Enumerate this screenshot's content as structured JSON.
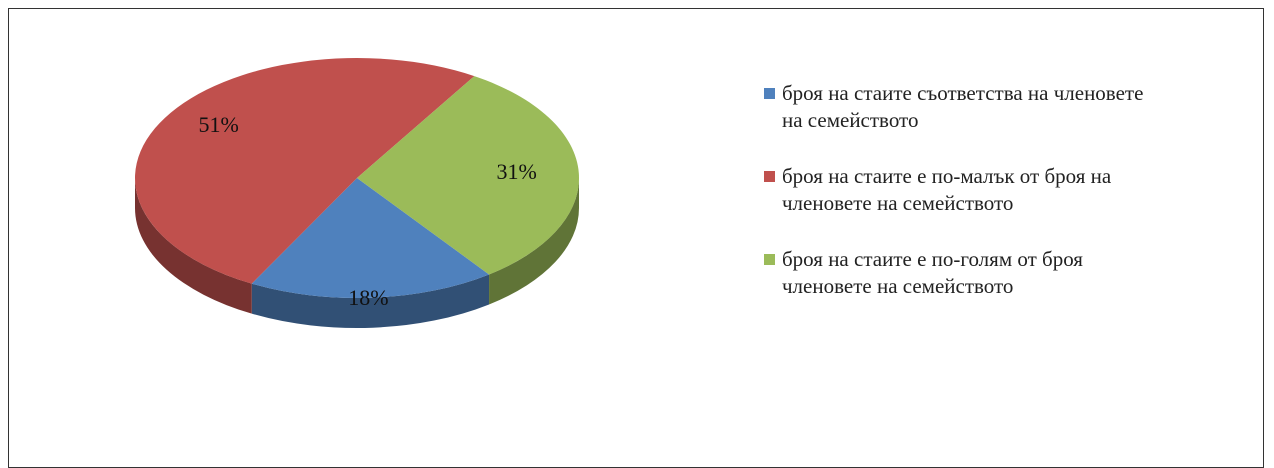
{
  "chart_data": {
    "type": "pie",
    "categories": [
      "броя на стаите съответства на членовете на семейството",
      "броя на стаите е по-малък от броя на членовете на семейството",
      "броя на стаите е по-голям от броя членовете на семейството"
    ],
    "values": [
      18,
      51,
      31
    ],
    "value_labels": [
      "18%",
      "51%",
      "31%"
    ],
    "colors": [
      "#4f81bd",
      "#c0504d",
      "#9bbb59"
    ]
  }
}
